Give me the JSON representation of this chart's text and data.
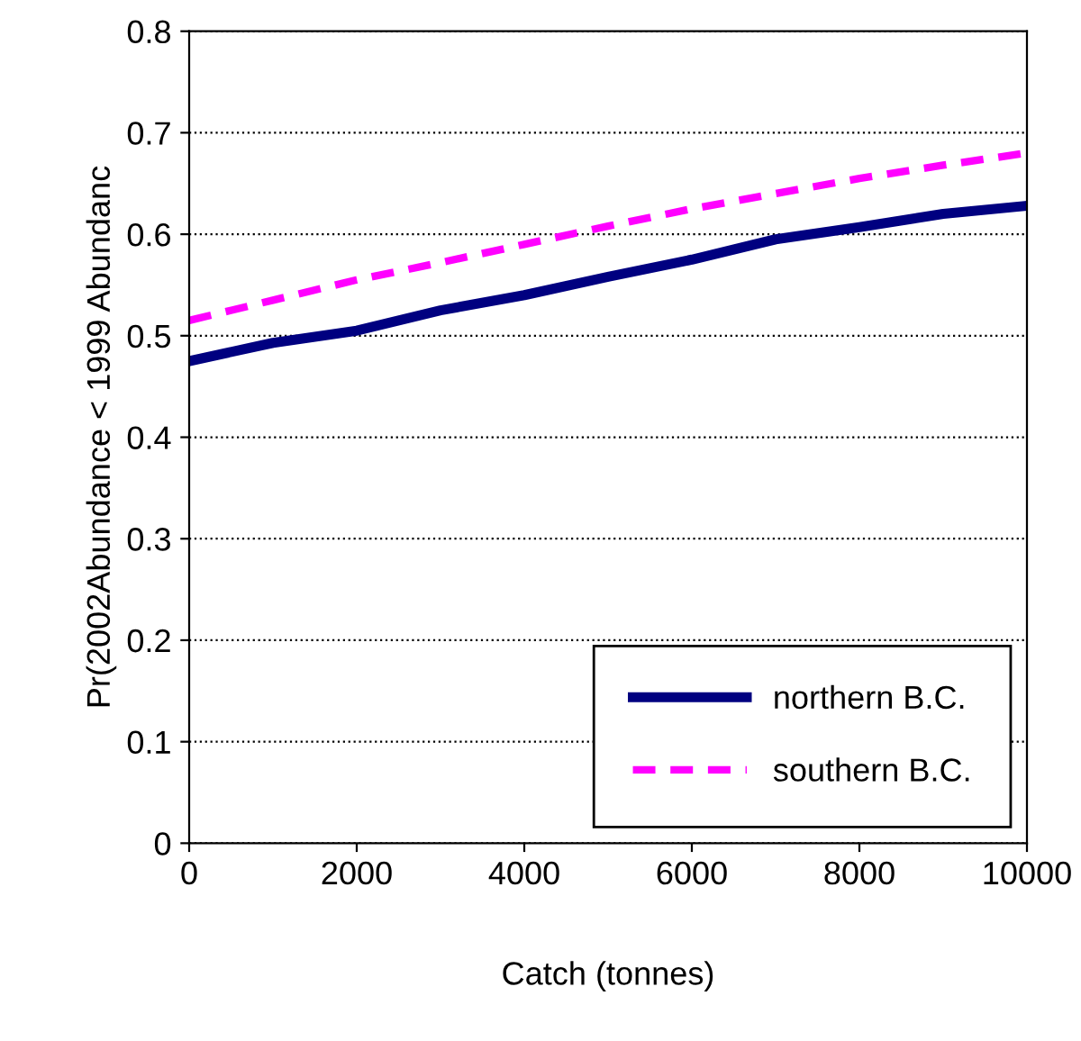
{
  "chart_data": {
    "type": "line",
    "xlabel": "Catch (tonnes)",
    "ylabel": "Pr(2002Abundance < 1999 Abundanc",
    "series": [
      {
        "name": "northern B.C.",
        "color": "#000080",
        "line_style": "solid",
        "x": [
          0,
          1000,
          2000,
          3000,
          4000,
          5000,
          6000,
          7000,
          8000,
          9000,
          10000
        ],
        "values": [
          0.475,
          0.493,
          0.505,
          0.525,
          0.54,
          0.558,
          0.575,
          0.595,
          0.607,
          0.62,
          0.628
        ]
      },
      {
        "name": "southern B.C.",
        "color": "#ff00ff",
        "line_style": "dashed",
        "x": [
          0,
          1000,
          2000,
          3000,
          4000,
          5000,
          6000,
          7000,
          8000,
          9000,
          10000
        ],
        "values": [
          0.515,
          0.535,
          0.555,
          0.572,
          0.59,
          0.608,
          0.625,
          0.64,
          0.655,
          0.668,
          0.68
        ]
      }
    ],
    "xlim": [
      0,
      10000
    ],
    "xticks": [
      0,
      2000,
      4000,
      6000,
      8000,
      10000
    ],
    "ylim": [
      0,
      0.8
    ],
    "yticks": [
      0,
      0.1,
      0.2,
      0.3,
      0.4,
      0.5,
      0.6,
      0.7,
      0.8
    ],
    "grid": "y",
    "legend": "bottom right",
    "marker": "none"
  }
}
